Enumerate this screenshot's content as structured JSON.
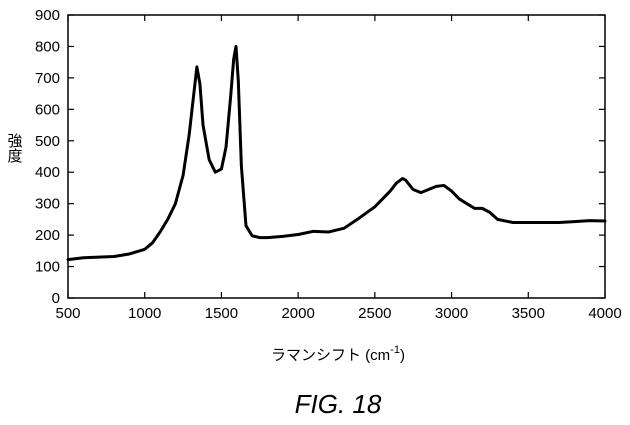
{
  "caption": "FIG. 18",
  "chart_data": {
    "type": "line",
    "title": "",
    "xlabel": "ラマンシフト (cm",
    "xlabel_superscript": "-1",
    "xlabel_suffix": ")",
    "ylabel": "強度",
    "xlim": [
      500,
      4000
    ],
    "ylim": [
      0,
      900
    ],
    "xticks": [
      "500",
      "1000",
      "1500",
      "2000",
      "2500",
      "3000",
      "3500",
      "4000"
    ],
    "yticks": [
      "0",
      "100",
      "200",
      "300",
      "400",
      "500",
      "600",
      "700",
      "800",
      "900"
    ],
    "grid": false,
    "series": [
      {
        "color": "#000000",
        "x": [
          500,
          600,
          700,
          800,
          900,
          1000,
          1050,
          1100,
          1150,
          1200,
          1250,
          1290,
          1320,
          1340,
          1360,
          1380,
          1420,
          1460,
          1500,
          1530,
          1560,
          1580,
          1595,
          1610,
          1630,
          1660,
          1700,
          1750,
          1800,
          1900,
          2000,
          2100,
          2200,
          2300,
          2400,
          2500,
          2550,
          2600,
          2640,
          2680,
          2700,
          2750,
          2800,
          2850,
          2900,
          2950,
          3000,
          3050,
          3100,
          3150,
          3200,
          3250,
          3300,
          3400,
          3500,
          3600,
          3700,
          3800,
          3900,
          4000
        ],
        "y": [
          122,
          128,
          130,
          132,
          140,
          155,
          175,
          210,
          250,
          300,
          390,
          520,
          650,
          735,
          680,
          550,
          440,
          400,
          410,
          480,
          640,
          760,
          800,
          690,
          420,
          230,
          198,
          192,
          192,
          196,
          202,
          212,
          210,
          222,
          255,
          290,
          315,
          340,
          365,
          380,
          375,
          345,
          335,
          345,
          355,
          358,
          340,
          315,
          300,
          285,
          285,
          272,
          250,
          240,
          240,
          240,
          240,
          243,
          246,
          245
        ]
      }
    ]
  }
}
